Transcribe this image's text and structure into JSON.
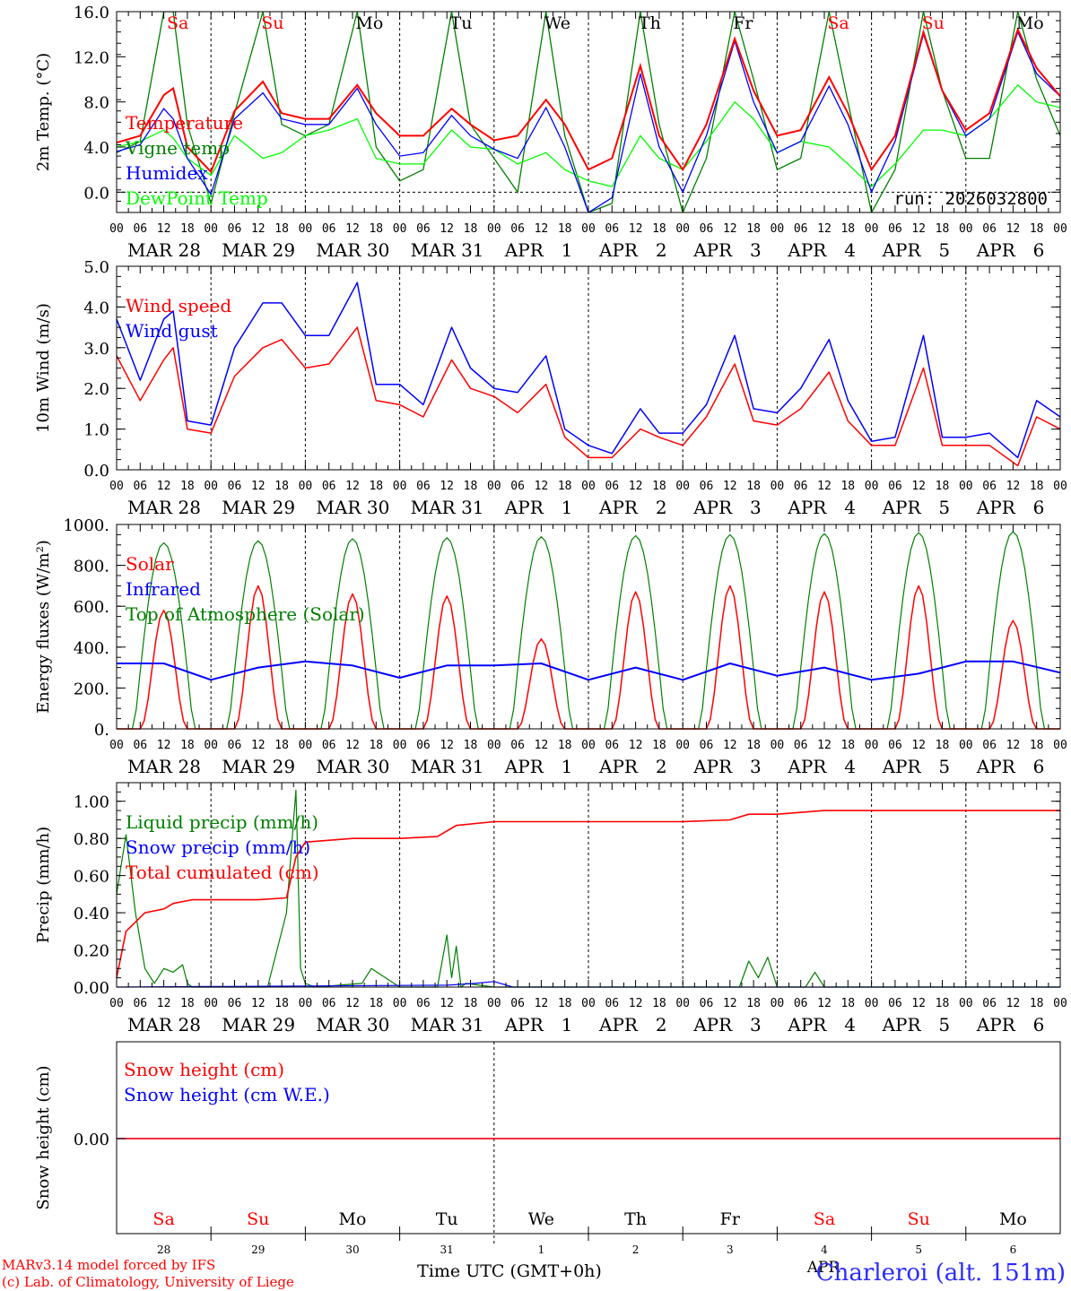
{
  "colors": {
    "red": "#ff0000",
    "green": "#008000",
    "blue": "#0000ff",
    "lightgreen": "#00ff00",
    "black": "#000000",
    "station": "#2b2bff"
  },
  "days": [
    {
      "abbr": "Sa",
      "weekend": true,
      "month": "MAR",
      "num": "28"
    },
    {
      "abbr": "Su",
      "weekend": true,
      "month": "MAR",
      "num": "29"
    },
    {
      "abbr": "Mo",
      "weekend": false,
      "month": "MAR",
      "num": "30"
    },
    {
      "abbr": "Tu",
      "weekend": false,
      "month": "MAR",
      "num": "31"
    },
    {
      "abbr": "We",
      "weekend": false,
      "month": "APR",
      "num": "1"
    },
    {
      "abbr": "Th",
      "weekend": false,
      "month": "APR",
      "num": "2"
    },
    {
      "abbr": "Fr",
      "weekend": false,
      "month": "APR",
      "num": "3"
    },
    {
      "abbr": "Sa",
      "weekend": true,
      "month": "APR",
      "num": "4"
    },
    {
      "abbr": "Su",
      "weekend": true,
      "month": "APR",
      "num": "5"
    },
    {
      "abbr": "Mo",
      "weekend": false,
      "month": "APR",
      "num": "6"
    }
  ],
  "hour_ticks": [
    "00",
    "06",
    "12",
    "18"
  ],
  "hour_tick_end": "00",
  "footer": {
    "model_line": "MARv3.14 model forced by IFS",
    "lab_line": "(c) Lab. of Climatology, University of Liege",
    "xlabel": "Time UTC (GMT+0h)",
    "station": "Charleroi (alt. 151m)",
    "month_label": "APR"
  },
  "chart_data": [
    {
      "id": "temperature",
      "type": "line",
      "ylabel": "2m Temp. (°C)",
      "ylim": [
        -1.8,
        16.0
      ],
      "yticks": [
        0,
        4,
        8,
        12,
        16
      ],
      "ytick_labels": [
        "0.0",
        "4.0",
        "8.0",
        "12.0",
        "16.0"
      ],
      "zero_line": true,
      "annotation": "run: 2026032800",
      "x_days": [
        0,
        0.25,
        0.5,
        0.6,
        0.75,
        1,
        1.25,
        1.55,
        1.75,
        2,
        2.25,
        2.55,
        2.75,
        3,
        3.25,
        3.55,
        3.75,
        4,
        4.25,
        4.55,
        4.75,
        5,
        5.25,
        5.55,
        5.75,
        6,
        6.25,
        6.55,
        6.75,
        7,
        7.25,
        7.55,
        7.75,
        8,
        8.25,
        8.55,
        8.75,
        9,
        9.25,
        9.55,
        9.75,
        10
      ],
      "series": [
        {
          "name": "Temperature",
          "color": "#ff0000",
          "values": [
            4.4,
            5.0,
            8.6,
            9.2,
            4.0,
            1.8,
            7.2,
            9.8,
            7.0,
            6.5,
            6.5,
            9.5,
            7.0,
            5.0,
            5.0,
            7.4,
            6.0,
            4.6,
            5.0,
            8.2,
            6.0,
            2.0,
            3.0,
            11.2,
            5.0,
            2.0,
            6.0,
            13.6,
            9.0,
            5.0,
            5.5,
            10.2,
            7.0,
            2.0,
            5.0,
            14.2,
            9.0,
            5.5,
            7.0,
            14.4,
            11.0,
            8.5
          ]
        },
        {
          "name": "Vigne temp",
          "color": "#008000",
          "values": [
            3.5,
            4.5,
            16.0,
            16.0,
            6.0,
            -1.0,
            7.0,
            16.0,
            6.0,
            5.0,
            6.0,
            16.0,
            4.0,
            1.0,
            2.0,
            16.0,
            6.0,
            3.0,
            0.0,
            16.0,
            5.0,
            -1.8,
            -1.0,
            16.0,
            6.0,
            -1.8,
            3.0,
            16.0,
            10.0,
            2.0,
            3.0,
            16.0,
            8.0,
            -1.8,
            2.0,
            16.0,
            9.0,
            3.0,
            3.0,
            16.0,
            10.0,
            5.0
          ]
        },
        {
          "name": "Humidex",
          "color": "#0000ff",
          "values": [
            3.6,
            4.2,
            7.4,
            6.5,
            3.0,
            -0.2,
            6.5,
            8.8,
            6.5,
            6.0,
            6.0,
            9.2,
            6.0,
            3.2,
            3.5,
            6.8,
            5.0,
            3.8,
            3.0,
            7.5,
            4.0,
            -1.8,
            -0.5,
            10.5,
            4.0,
            0.0,
            5.0,
            13.4,
            8.0,
            3.5,
            4.5,
            9.4,
            6.0,
            0.0,
            4.5,
            14.0,
            9.0,
            5.0,
            6.5,
            14.2,
            10.5,
            8.5
          ]
        },
        {
          "name": "DewPoint Temp",
          "color": "#00ff00",
          "values": [
            4.0,
            4.5,
            5.5,
            4.8,
            3.0,
            1.5,
            5.0,
            3.0,
            3.5,
            5.0,
            5.5,
            6.5,
            3.0,
            2.5,
            2.5,
            5.5,
            4.0,
            3.8,
            2.5,
            3.5,
            2.0,
            1.0,
            0.5,
            5.0,
            3.0,
            2.0,
            4.5,
            8.0,
            6.5,
            3.5,
            4.5,
            4.0,
            2.5,
            0.5,
            2.5,
            5.5,
            5.5,
            5.0,
            6.5,
            9.5,
            8.0,
            7.5
          ]
        }
      ]
    },
    {
      "id": "wind",
      "type": "line",
      "ylabel": "10m Wind (m/s)",
      "ylim": [
        0,
        5
      ],
      "yticks": [
        0,
        1,
        2,
        3,
        4,
        5
      ],
      "ytick_labels": [
        "0.0",
        "1.0",
        "2.0",
        "3.0",
        "4.0",
        "5.0"
      ],
      "x_days": [
        0,
        0.25,
        0.5,
        0.6,
        0.75,
        1,
        1.25,
        1.55,
        1.75,
        2,
        2.25,
        2.55,
        2.75,
        3,
        3.25,
        3.55,
        3.75,
        4,
        4.25,
        4.55,
        4.75,
        5,
        5.25,
        5.55,
        5.75,
        6,
        6.25,
        6.55,
        6.75,
        7,
        7.25,
        7.55,
        7.75,
        8,
        8.25,
        8.55,
        8.75,
        9,
        9.25,
        9.55,
        9.75,
        10
      ],
      "series": [
        {
          "name": "Wind speed",
          "color": "#ff0000",
          "values": [
            2.8,
            1.7,
            2.7,
            3.0,
            1.0,
            0.9,
            2.3,
            3.0,
            3.2,
            2.5,
            2.6,
            3.5,
            1.7,
            1.6,
            1.3,
            2.7,
            2.0,
            1.8,
            1.4,
            2.1,
            0.8,
            0.3,
            0.3,
            1.0,
            0.8,
            0.6,
            1.3,
            2.6,
            1.2,
            1.1,
            1.5,
            2.4,
            1.2,
            0.6,
            0.6,
            2.5,
            0.6,
            0.6,
            0.6,
            0.1,
            1.3,
            1.0
          ]
        },
        {
          "name": "Wind gust",
          "color": "#0000ff",
          "values": [
            3.7,
            2.2,
            3.7,
            3.9,
            1.2,
            1.1,
            3.0,
            4.1,
            4.1,
            3.3,
            3.3,
            4.6,
            2.1,
            2.1,
            1.6,
            3.5,
            2.5,
            2.0,
            1.9,
            2.8,
            1.0,
            0.6,
            0.4,
            1.5,
            0.9,
            0.9,
            1.6,
            3.3,
            1.5,
            1.4,
            2.0,
            3.2,
            1.7,
            0.7,
            0.8,
            3.3,
            0.8,
            0.8,
            0.9,
            0.3,
            1.7,
            1.3
          ]
        }
      ]
    },
    {
      "id": "energy",
      "type": "line",
      "ylabel": "Energy fluxes (W/m²)",
      "ylim": [
        0,
        1000
      ],
      "yticks": [
        0,
        200,
        400,
        600,
        800,
        1000
      ],
      "ytick_labels": [
        "0.",
        "200.",
        "400.",
        "600.",
        "800.",
        "1000."
      ],
      "solar_peak_values": [
        580,
        700,
        660,
        650,
        440,
        670,
        700,
        670,
        700,
        530
      ],
      "toa_peak_values": [
        910,
        920,
        930,
        935,
        940,
        945,
        950,
        955,
        960,
        965
      ],
      "infrared_x_days": [
        0,
        0.5,
        1,
        1.5,
        2,
        2.5,
        3,
        3.5,
        4,
        4.5,
        5,
        5.5,
        6,
        6.5,
        7,
        7.5,
        8,
        8.5,
        9,
        9.5,
        10
      ],
      "infrared_values": [
        320,
        320,
        240,
        300,
        330,
        310,
        250,
        310,
        310,
        320,
        240,
        300,
        240,
        320,
        260,
        300,
        240,
        270,
        330,
        330,
        275
      ],
      "series": [
        {
          "name": "Solar",
          "color": "#ff0000"
        },
        {
          "name": "Infrared",
          "color": "#0000ff"
        },
        {
          "name": "Top of Atmosphere (Solar)",
          "color": "#008000"
        }
      ]
    },
    {
      "id": "precip",
      "type": "line",
      "ylabel": "Precip (mm/h)",
      "ylim": [
        0,
        1.1
      ],
      "yticks": [
        0,
        0.2,
        0.4,
        0.6,
        0.8,
        1.0
      ],
      "ytick_labels": [
        "0.00",
        "0.20",
        "0.40",
        "0.60",
        "0.80",
        "1.00"
      ],
      "series": [
        {
          "name": "Liquid precip (mm/h)",
          "color": "#008000",
          "x_days": [
            0,
            0.1,
            0.2,
            0.3,
            0.4,
            0.5,
            0.6,
            0.7,
            0.75,
            0.8,
            1.0,
            1.6,
            1.8,
            1.9,
            1.95,
            2.0,
            2.1,
            2.6,
            2.7,
            3.0,
            3.4,
            3.5,
            3.55,
            3.6,
            3.65,
            3.7,
            4.0,
            6.6,
            6.7,
            6.8,
            6.9,
            7.0,
            7.3,
            7.4,
            7.5,
            10.0
          ],
          "values": [
            0.5,
            0.82,
            0.4,
            0.1,
            0.02,
            0.1,
            0.08,
            0.12,
            0.02,
            0.0,
            0.0,
            0.0,
            0.4,
            1.06,
            0.1,
            0.02,
            0.0,
            0.02,
            0.1,
            0.0,
            0.0,
            0.28,
            0.05,
            0.22,
            0.0,
            0.02,
            0.0,
            0.0,
            0.14,
            0.05,
            0.16,
            0.0,
            0.0,
            0.08,
            0.0,
            0.0
          ]
        },
        {
          "name": "Snow precip (mm/h)",
          "color": "#0000ff",
          "x_days": [
            0,
            3.5,
            3.8,
            4.0,
            4.2,
            10.0
          ],
          "values": [
            0.0,
            0.01,
            0.02,
            0.03,
            0.0,
            0.0
          ]
        },
        {
          "name": "Total cumulated (cm)",
          "color": "#ff0000",
          "x_days": [
            0,
            0.1,
            0.3,
            0.5,
            0.6,
            0.8,
            1.0,
            1.5,
            1.8,
            1.9,
            2.0,
            2.5,
            3.0,
            3.4,
            3.6,
            4.0,
            4.5,
            5.0,
            6.0,
            6.5,
            6.7,
            7.0,
            7.5,
            8.0,
            9.0,
            10.0
          ],
          "values": [
            0.05,
            0.3,
            0.4,
            0.42,
            0.45,
            0.47,
            0.47,
            0.47,
            0.48,
            0.7,
            0.78,
            0.8,
            0.8,
            0.81,
            0.87,
            0.89,
            0.89,
            0.89,
            0.89,
            0.9,
            0.93,
            0.93,
            0.95,
            0.95,
            0.95,
            0.95
          ]
        }
      ]
    },
    {
      "id": "snow",
      "type": "line",
      "ylabel": "Snow height (cm)",
      "yticks": [
        0
      ],
      "ytick_labels": [
        "0.00"
      ],
      "series": [
        {
          "name": "Snow height (cm)",
          "color": "#ff0000",
          "values": [
            0,
            0
          ]
        },
        {
          "name": "Snow height (cm W.E.)",
          "color": "#0000ff",
          "values": [
            0,
            0
          ]
        }
      ]
    }
  ]
}
